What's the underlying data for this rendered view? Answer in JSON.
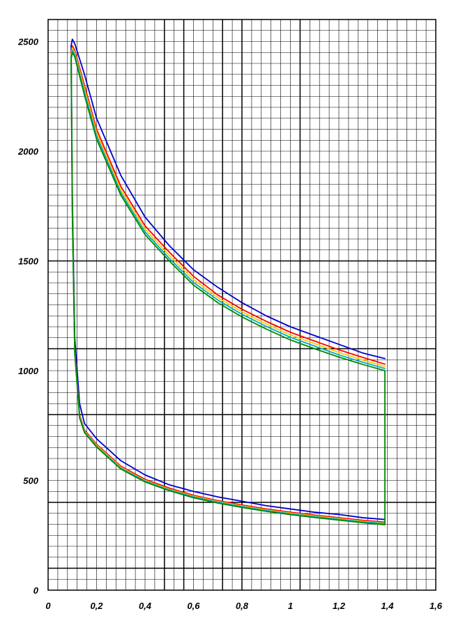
{
  "chart_data": {
    "type": "line",
    "title": "",
    "xlabel": "",
    "ylabel": "",
    "xlim": [
      0,
      1.6
    ],
    "ylim": [
      0,
      2600
    ],
    "x_ticks": [
      {
        "value": 0,
        "label": "0"
      },
      {
        "value": 0.2,
        "label": "0,2"
      },
      {
        "value": 0.4,
        "label": "0,4"
      },
      {
        "value": 0.6,
        "label": "0,6"
      },
      {
        "value": 0.8,
        "label": "0,8"
      },
      {
        "value": 1.0,
        "label": "1"
      },
      {
        "value": 1.2,
        "label": "1,2"
      },
      {
        "value": 1.4,
        "label": "1,4"
      },
      {
        "value": 1.6,
        "label": "1,6"
      }
    ],
    "y_ticks": [
      {
        "value": 0,
        "label": "0"
      },
      {
        "value": 500,
        "label": "500"
      },
      {
        "value": 1000,
        "label": "1000"
      },
      {
        "value": 1500,
        "label": "1500"
      },
      {
        "value": 2000,
        "label": "2000"
      },
      {
        "value": 2500,
        "label": "2500"
      }
    ],
    "grid": true,
    "minor_grid": {
      "x_step": 0.04,
      "y_step": 50
    },
    "major_grid": {
      "x": [
        0.48,
        0.56,
        0.72,
        0.8,
        1.04
      ],
      "y": [
        100,
        400,
        800,
        1100,
        1500
      ]
    },
    "legend": "none",
    "series": [
      {
        "color": "#0000cc",
        "upper": {
          "x": [
            0.095,
            0.1,
            0.11,
            0.15,
            0.2,
            0.3,
            0.4,
            0.5,
            0.6,
            0.7,
            0.8,
            0.9,
            1.0,
            1.1,
            1.2,
            1.3,
            1.39
          ],
          "y": [
            2480,
            2510,
            2490,
            2350,
            2150,
            1890,
            1700,
            1570,
            1460,
            1380,
            1310,
            1250,
            1200,
            1160,
            1120,
            1080,
            1055
          ]
        },
        "lower": {
          "x": [
            0.095,
            0.1,
            0.11,
            0.13,
            0.15,
            0.2,
            0.3,
            0.4,
            0.5,
            0.6,
            0.7,
            0.8,
            0.9,
            1.0,
            1.1,
            1.2,
            1.3,
            1.39
          ],
          "y": [
            2480,
            1800,
            1150,
            850,
            760,
            690,
            590,
            525,
            480,
            450,
            425,
            405,
            385,
            370,
            355,
            345,
            330,
            322
          ]
        }
      },
      {
        "color": "#ff0000",
        "upper": {
          "x": [
            0.095,
            0.1,
            0.11,
            0.15,
            0.2,
            0.3,
            0.4,
            0.5,
            0.6,
            0.7,
            0.8,
            0.9,
            1.0,
            1.1,
            1.2,
            1.3,
            1.39
          ],
          "y": [
            2450,
            2480,
            2460,
            2300,
            2100,
            1840,
            1660,
            1540,
            1430,
            1345,
            1280,
            1225,
            1175,
            1135,
            1095,
            1060,
            1030
          ]
        },
        "lower": {
          "x": [
            0.095,
            0.1,
            0.11,
            0.13,
            0.15,
            0.2,
            0.3,
            0.4,
            0.5,
            0.6,
            0.7,
            0.8,
            0.9,
            1.0,
            1.1,
            1.2,
            1.3,
            1.39
          ],
          "y": [
            2450,
            1750,
            1100,
            800,
            730,
            665,
            565,
            505,
            465,
            432,
            408,
            388,
            370,
            355,
            342,
            330,
            318,
            310
          ]
        }
      },
      {
        "color": "#ffcc00",
        "upper": {
          "x": [
            0.095,
            0.1,
            0.11,
            0.15,
            0.2,
            0.3,
            0.4,
            0.5,
            0.6,
            0.7,
            0.8,
            0.9,
            1.0,
            1.1,
            1.2,
            1.3,
            1.39
          ],
          "y": [
            2440,
            2470,
            2450,
            2285,
            2085,
            1825,
            1645,
            1525,
            1415,
            1333,
            1268,
            1213,
            1163,
            1123,
            1083,
            1048,
            1020
          ]
        },
        "lower": {
          "x": [
            0.095,
            0.1,
            0.11,
            0.13,
            0.15,
            0.2,
            0.3,
            0.4,
            0.5,
            0.6,
            0.7,
            0.8,
            0.9,
            1.0,
            1.1,
            1.2,
            1.3,
            1.39
          ],
          "y": [
            2440,
            1740,
            1090,
            795,
            725,
            660,
            560,
            500,
            460,
            428,
            404,
            384,
            366,
            351,
            338,
            326,
            314,
            306
          ]
        }
      },
      {
        "color": "#00aacc",
        "upper": {
          "x": [
            0.095,
            0.1,
            0.11,
            0.15,
            0.2,
            0.3,
            0.4,
            0.5,
            0.6,
            0.7,
            0.8,
            0.9,
            1.0,
            1.1,
            1.2,
            1.3,
            1.39
          ],
          "y": [
            2430,
            2460,
            2440,
            2270,
            2070,
            1812,
            1632,
            1512,
            1402,
            1322,
            1257,
            1202,
            1152,
            1112,
            1072,
            1038,
            1010
          ]
        },
        "lower": {
          "x": [
            0.095,
            0.1,
            0.11,
            0.13,
            0.15,
            0.2,
            0.3,
            0.4,
            0.5,
            0.6,
            0.7,
            0.8,
            0.9,
            1.0,
            1.1,
            1.2,
            1.3,
            1.39
          ],
          "y": [
            2430,
            1730,
            1085,
            790,
            722,
            656,
            556,
            497,
            457,
            425,
            401,
            381,
            363,
            348,
            335,
            323,
            311,
            303
          ]
        }
      },
      {
        "color": "#008800",
        "upper": {
          "x": [
            0.095,
            0.1,
            0.11,
            0.15,
            0.2,
            0.3,
            0.4,
            0.5,
            0.6,
            0.7,
            0.8,
            0.9,
            1.0,
            1.1,
            1.2,
            1.3,
            1.39,
            1.39
          ],
          "y": [
            2420,
            2450,
            2430,
            2255,
            2055,
            1800,
            1620,
            1500,
            1390,
            1310,
            1245,
            1190,
            1140,
            1100,
            1062,
            1028,
            1000,
            300
          ]
        },
        "lower": {
          "x": [
            0.095,
            0.1,
            0.11,
            0.13,
            0.15,
            0.2,
            0.3,
            0.4,
            0.5,
            0.6,
            0.7,
            0.8,
            0.9,
            1.0,
            1.1,
            1.2,
            1.3,
            1.39
          ],
          "y": [
            2420,
            1720,
            1080,
            785,
            718,
            652,
            552,
            493,
            453,
            421,
            397,
            377,
            359,
            344,
            331,
            319,
            307,
            298
          ]
        }
      }
    ]
  }
}
